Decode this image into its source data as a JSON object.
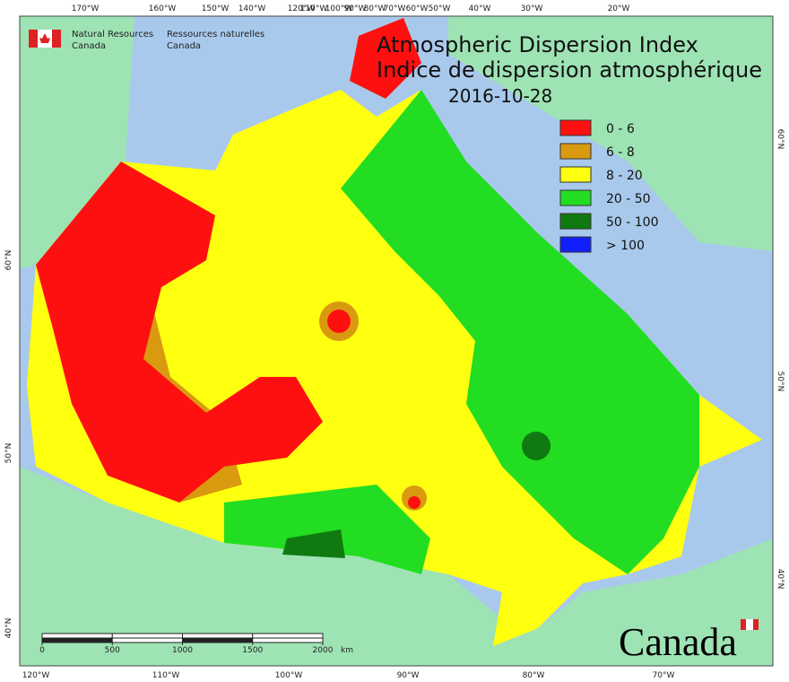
{
  "agency_en": [
    "Natural Resources",
    "Canada"
  ],
  "agency_fr": [
    "Ressources naturelles",
    "Canada"
  ],
  "title": [
    "Atmospheric Dispersion Index",
    "Indice de dispersion atmosphérique"
  ],
  "date": "2016-10-28",
  "legend": [
    {
      "label": "0 - 6",
      "color": "#ff1010"
    },
    {
      "label": "6 - 8",
      "color": "#d99a10"
    },
    {
      "label": "8 - 20",
      "color": "#ffff10"
    },
    {
      "label": "20 - 50",
      "color": "#22dd22"
    },
    {
      "label": "50 - 100",
      "color": "#107a10"
    },
    {
      "label": "> 100",
      "color": "#1020ff"
    }
  ],
  "top_labels": [
    "170°W",
    "160°W",
    "150°W",
    "140°W",
    "120°W",
    "110°W",
    "100°W",
    "90°W",
    "80°W",
    "70°W",
    "60°W",
    "50°W",
    "40°W",
    "30°W",
    "20°W"
  ],
  "bottom_labels": [
    "120°W",
    "110°W",
    "100°W",
    "90°W",
    "80°W",
    "70°W"
  ],
  "left_labels": [
    "60°N",
    "50°N",
    "40°N"
  ],
  "right_labels": [
    "60°N",
    "50°N",
    "40°N"
  ],
  "scale": {
    "ticks": [
      0,
      500,
      1000,
      1500,
      2000
    ],
    "unit": "km"
  },
  "wordmark": "Canada"
}
